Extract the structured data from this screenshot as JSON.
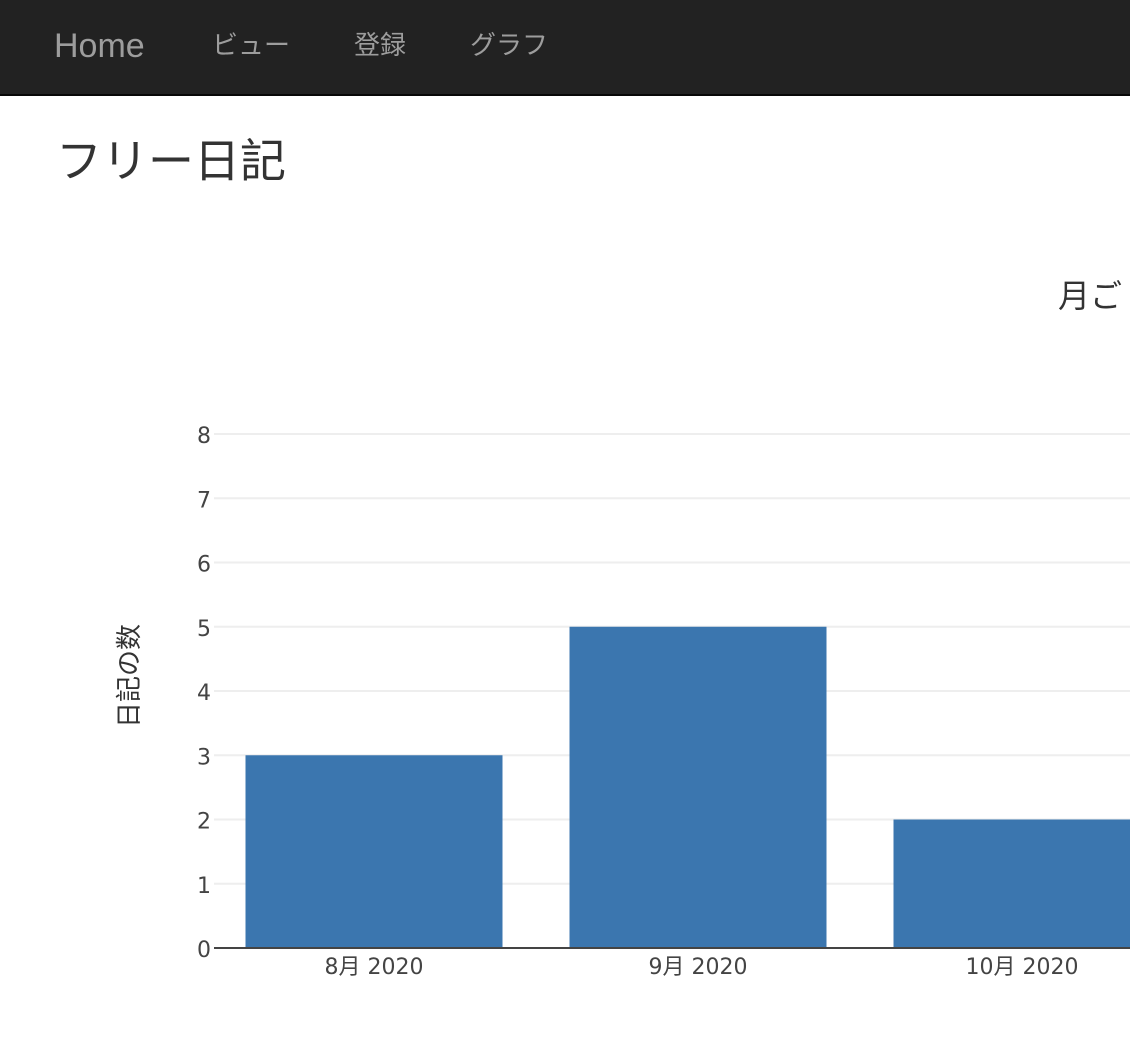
{
  "navbar": {
    "brand": "Home",
    "items": [
      "ビュー",
      "登録",
      "グラフ"
    ]
  },
  "page": {
    "title": "フリー日記"
  },
  "chart_data": {
    "type": "bar",
    "title": "月ご",
    "xlabel": "",
    "ylabel": "日記の数",
    "categories": [
      "8月 2020",
      "9月 2020",
      "10月 2020"
    ],
    "values": [
      3,
      5,
      2
    ],
    "ylim": [
      0,
      8
    ],
    "yticks": [
      0,
      1,
      2,
      3,
      4,
      5,
      6,
      7,
      8
    ],
    "grid": true,
    "bar_color": "#3b76af",
    "grid_color": "#eeeeee",
    "axis_color": "#444444"
  }
}
